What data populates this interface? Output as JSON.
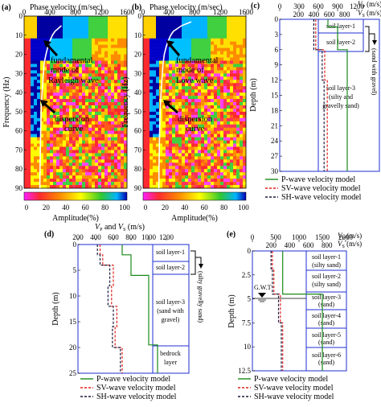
{
  "chart_data": [
    {
      "panel": "(a)",
      "type": "heatmap",
      "xlabel": "Phase velocity (m/sec)",
      "ylabel": "Frequency (Hz)",
      "xticks": [
        "0",
        "400",
        "800",
        "1200",
        "1600"
      ],
      "yticks": [
        "0",
        "10",
        "20",
        "30",
        "40",
        "50",
        "60",
        "70",
        "80",
        "90"
      ],
      "xlim": [
        0,
        1600
      ],
      "ylim": [
        0,
        90
      ],
      "colorbar_label": "Amplitude(%)",
      "colorbar_ticks": [
        "0",
        "20",
        "40",
        "60",
        "80",
        "100"
      ],
      "annotations": [
        "fundamental mode of Rayleigh wave",
        "dispersion curve"
      ],
      "dispersion_curve": {
        "frequency": [
          5,
          8,
          10,
          13,
          16,
          20,
          25,
          30,
          35,
          40,
          45,
          50,
          55,
          60,
          65,
          70,
          75,
          80,
          85,
          90
        ],
        "velocity": [
          580,
          480,
          440,
          400,
          370,
          340,
          310,
          300,
          290,
          280,
          270,
          265,
          262,
          258,
          255,
          252,
          250,
          248,
          246,
          245
        ]
      }
    },
    {
      "panel": "(b)",
      "type": "heatmap",
      "xlabel": "Phase velocity (m/sec)",
      "ylabel": "Frequency (Hz)",
      "xticks": [
        "0",
        "400",
        "800",
        "1200",
        "1600"
      ],
      "yticks": [
        "0",
        "10",
        "20",
        "30",
        "40",
        "50",
        "60",
        "70",
        "80",
        "90"
      ],
      "xlim": [
        0,
        1600
      ],
      "ylim": [
        0,
        90
      ],
      "colorbar_label": "Amplitude(%)",
      "colorbar_ticks": [
        "0",
        "20",
        "40",
        "60",
        "80",
        "100"
      ],
      "annotations": [
        "fundamental mode of Love wave",
        "dispersion curve"
      ],
      "dispersion_curve": {
        "frequency": [
          3,
          5,
          8,
          10,
          13,
          16,
          20,
          25,
          30,
          35,
          40,
          45,
          50,
          55,
          60,
          65,
          70,
          75,
          80,
          85,
          90
        ],
        "velocity": [
          750,
          600,
          470,
          430,
          390,
          360,
          330,
          310,
          300,
          290,
          280,
          272,
          266,
          262,
          258,
          255,
          252,
          250,
          248,
          246,
          245
        ]
      }
    },
    {
      "panel": "(c)",
      "type": "line",
      "x_top_label": "Vp (m/s)",
      "x_bottom_label": "Vs (m/s)",
      "xticks": [
        "0",
        "300",
        "600",
        "900",
        "1200"
      ],
      "xticks_vs": [
        "200",
        "400",
        "600",
        "800"
      ],
      "ylabel": "Depth (m)",
      "yticks": [
        "0",
        "3",
        "6",
        "9",
        "12",
        "15",
        "18",
        "21",
        "24",
        "27",
        "30"
      ],
      "ylim": [
        0,
        30
      ],
      "layers": [
        "soil layer-1",
        "soil layer-2",
        "soil layer-3 (silty and gravelly sand)"
      ],
      "bracket_label": "(sand with gravel)",
      "legend": [
        "P-wave velocity model",
        "SV-wave velocity model",
        "SH-wave velocity model"
      ],
      "series": [
        {
          "name": "P-wave velocity model",
          "depth": [
            0,
            1.5,
            1.5,
            6,
            6,
            30
          ],
          "velocity": [
            750,
            750,
            900,
            900,
            1050,
            1050
          ]
        },
        {
          "name": "SV-wave velocity model",
          "depth": [
            0,
            6,
            6,
            12,
            12,
            30
          ],
          "velocity": [
            560,
            560,
            700,
            700,
            740,
            740
          ]
        },
        {
          "name": "SH-wave velocity model",
          "depth": [
            0,
            6,
            6,
            12,
            12,
            30
          ],
          "velocity": [
            530,
            530,
            660,
            660,
            690,
            690
          ]
        }
      ]
    },
    {
      "panel": "(d)",
      "type": "line",
      "x_label": "Vp and Vs (m/s)",
      "xticks": [
        "200",
        "400",
        "600",
        "800",
        "1000",
        "1200"
      ],
      "ylabel": "Depth (m)",
      "yticks": [
        "0",
        "5",
        "10",
        "15",
        "20",
        "25"
      ],
      "ylim": [
        0,
        25
      ],
      "layers": [
        "soil layer-1",
        "soil layer-2",
        "soil layer-3 (sand with gravel)",
        "bedrock layer"
      ],
      "bracket_label": "(silty gravelly sand)",
      "legend": [
        "P-wave velocity model",
        "SV-wave velocity model",
        "SH-wave velocity model"
      ],
      "series": [
        {
          "name": "P-wave velocity model",
          "depth": [
            0,
            2,
            2,
            6,
            6,
            19.5,
            19.5,
            25
          ],
          "velocity": [
            700,
            700,
            800,
            800,
            1000,
            1000,
            1100,
            1100
          ]
        },
        {
          "name": "SV-wave velocity model",
          "depth": [
            0,
            2,
            2,
            4,
            4,
            8,
            8,
            12,
            12,
            16,
            16,
            20,
            20,
            25
          ],
          "velocity": [
            450,
            450,
            480,
            480,
            600,
            600,
            580,
            580,
            640,
            640,
            620,
            620,
            700,
            700
          ]
        },
        {
          "name": "SH-wave velocity model",
          "depth": [
            0,
            2,
            2,
            4,
            4,
            8,
            8,
            12,
            12,
            16,
            16,
            20,
            20,
            25
          ],
          "velocity": [
            420,
            420,
            450,
            450,
            560,
            560,
            540,
            540,
            600,
            600,
            590,
            590,
            680,
            680
          ]
        }
      ]
    },
    {
      "panel": "(e)",
      "type": "line",
      "x_label": "Vp and Vs (m/s)",
      "xticks": [
        "0",
        "500",
        "1000",
        "1500",
        "2000"
      ],
      "xticks_vs": [
        "200",
        "400",
        "600",
        "800"
      ],
      "ylabel": "Depth (m)",
      "yticks": [
        "0",
        "2.5",
        "5",
        "7.5",
        "10",
        "12.5"
      ],
      "ylim": [
        0,
        12.5
      ],
      "gwt_label": "G.W.T",
      "layers": [
        "soil layer-1 (silty sand)",
        "soil layer-2 (silty sand)",
        "soil layer-3 (sand)",
        "soil layer-4 (sand)",
        "soil layer-5 (sand)",
        "soil layer-6 (sand)"
      ],
      "legend": [
        "P-wave velocity model",
        "SV-wave velocity model",
        "SH-wave velocity model"
      ],
      "series": [
        {
          "name": "P-wave velocity model",
          "depth": [
            0,
            4.5,
            4.5,
            12.5
          ],
          "velocity": [
            650,
            650,
            1500,
            1500
          ]
        },
        {
          "name": "SV-wave velocity model",
          "depth": [
            0,
            2,
            2,
            4.5,
            4.5,
            7.5,
            7.5,
            12.5
          ],
          "velocity": [
            430,
            430,
            460,
            460,
            600,
            600,
            650,
            650
          ]
        },
        {
          "name": "SH-wave velocity model",
          "depth": [
            0,
            2,
            2,
            4.5,
            4.5,
            7.5,
            7.5,
            12.5
          ],
          "velocity": [
            400,
            400,
            430,
            430,
            560,
            560,
            620,
            620
          ]
        }
      ]
    }
  ],
  "colors": {
    "p_wave": "#1a8a1a",
    "sv_wave": "#e0201c",
    "sh_wave": "#1a1a3a",
    "frame": "#1f2fd0"
  }
}
